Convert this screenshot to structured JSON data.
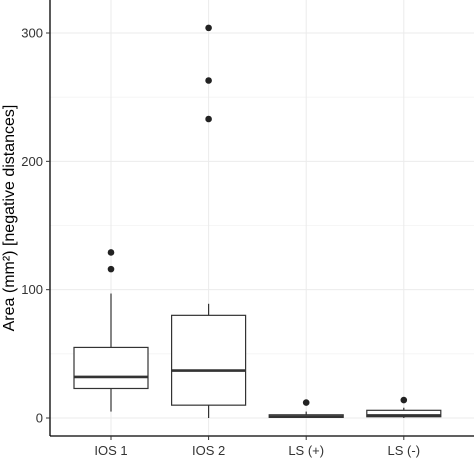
{
  "chart_data": {
    "type": "box",
    "title": "",
    "xlabel": "",
    "ylabel": "Area (mm²) [negative distances]",
    "categories": [
      "IOS 1",
      "IOS 2",
      "LS (+)",
      "LS (-)"
    ],
    "yticks": [
      0,
      100,
      200,
      300
    ],
    "ylim": [
      -12,
      318
    ],
    "grid": true,
    "legend": "none",
    "boxes": [
      {
        "category": "IOS 1",
        "whisker_low": 5,
        "q1": 23,
        "median": 32,
        "q3": 55,
        "whisker_high": 97,
        "outliers": [
          116,
          129
        ]
      },
      {
        "category": "IOS 2",
        "whisker_low": 0,
        "q1": 10,
        "median": 37,
        "q3": 80,
        "whisker_high": 89,
        "outliers": [
          233,
          263,
          304
        ]
      },
      {
        "category": "LS (+)",
        "whisker_low": 0,
        "q1": 0.5,
        "median": 1,
        "q3": 2.5,
        "whisker_high": 5,
        "outliers": [
          12
        ]
      },
      {
        "category": "LS (-)",
        "whisker_low": 0,
        "q1": 1,
        "median": 2,
        "q3": 6,
        "whisker_high": 8,
        "outliers": [
          14
        ]
      }
    ],
    "colors": {
      "box_fill": "#ffffff",
      "box_stroke": "#333333",
      "point": "#222222",
      "grid": "#ebebeb",
      "axis": "#000000"
    }
  }
}
